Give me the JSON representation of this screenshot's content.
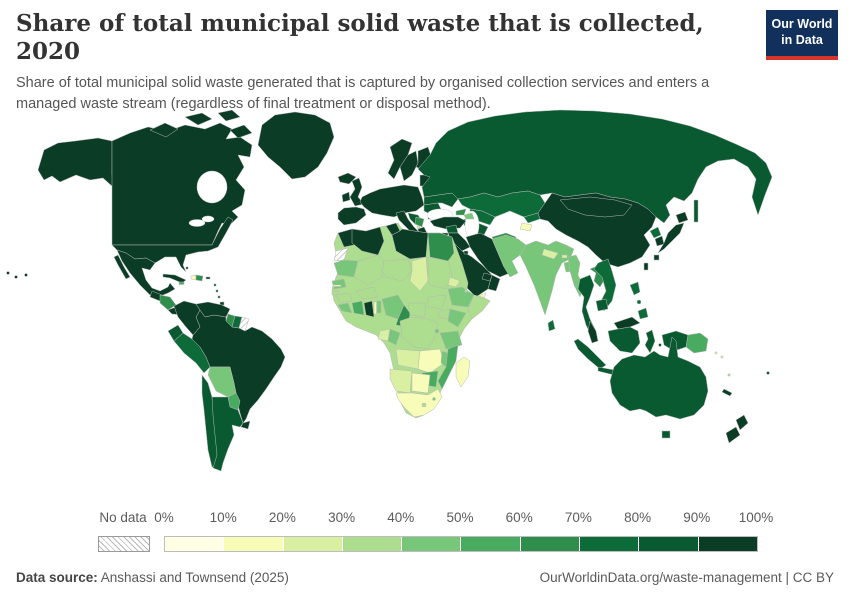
{
  "header": {
    "title": "Share of total municipal solid waste that is collected, 2020",
    "subtitle": "Share of total municipal solid waste generated that is captured by organised collection services and enters a managed waste stream (regardless of final treatment or disposal method).",
    "logo": {
      "line1": "Our World",
      "line2": "in Data",
      "bg": "#12305c",
      "accent": "#d7352a"
    }
  },
  "legend": {
    "no_data_label": "No data",
    "tick_labels": [
      "0%",
      "10%",
      "20%",
      "30%",
      "40%",
      "50%",
      "60%",
      "70%",
      "80%",
      "90%",
      "100%"
    ]
  },
  "footer": {
    "source_label": "Data source:",
    "source_value": " Anshassi and Townsend (2025)",
    "right_text": "OurWorldinData.org/waste-management | CC BY"
  },
  "chart_data": {
    "type": "choropleth",
    "title": "Share of total municipal solid waste that is collected, 2020",
    "unit": "%",
    "bin_edges": [
      0,
      10,
      20,
      30,
      40,
      50,
      60,
      70,
      80,
      90,
      100
    ],
    "colors": [
      "#ffffe5",
      "#f7fcb9",
      "#d9f0a3",
      "#addd8e",
      "#78c679",
      "#48ab5f",
      "#2f8e4c",
      "#0d6b39",
      "#0a5a31",
      "#0b3d26"
    ],
    "no_data_style": "white-with-gray-diagonal-hatch",
    "legend_position": "bottom",
    "countries": {
      "Canada": 99,
      "United States": 99,
      "Greenland": 99,
      "Mexico": 97,
      "Guatemala": 95,
      "Honduras": 60,
      "Nicaragua": 58,
      "Costa Rica": 95,
      "Panama": 95,
      "Cuba": 95,
      "Haiti": 15,
      "Dominican Republic": 65,
      "Jamaica": 55,
      "Puerto Rico": 95,
      "Bahamas": 95,
      "Barbados": 85,
      "Trinidad and Tobago": 95,
      "Colombia": 98,
      "Venezuela": 98,
      "Guyana": 62,
      "Suriname": 75,
      "French Guiana": null,
      "Ecuador": 88,
      "Peru": 75,
      "Brazil": 95,
      "Bolivia": 45,
      "Paraguay": 55,
      "Uruguay": 92,
      "Argentina": 85,
      "Chile": 88,
      "Iceland": 98,
      "Ireland": 97,
      "United Kingdom": 99,
      "Norway": 99,
      "Sweden": 99,
      "Finland": 99,
      "Denmark": 99,
      "Germany": 99,
      "Spain": 97,
      "Italy": 99,
      "Estonia": 95,
      "Belarus": 92,
      "Ukraine": 85,
      "Romania": 88,
      "Bulgaria": 90,
      "Croatia": 88,
      "Serbia": 65,
      "Montenegro": 25,
      "Greece": 95,
      "Turkey": 92,
      "Georgia": 60,
      "Azerbaijan": 45,
      "Russia": 85,
      "Kazakhstan": 70,
      "Uzbekistan": 72,
      "Turkmenistan": 82,
      "Kyrgyzstan": 72,
      "Tajikistan": 15,
      "Afghanistan": 62,
      "Pakistan": 45,
      "India": 45,
      "Nepal": 25,
      "Bhutan": 25,
      "Bangladesh": 45,
      "Sri Lanka": 75,
      "Myanmar": 45,
      "Thailand": 85,
      "Laos": 62,
      "Vietnam": 75,
      "Cambodia": 80,
      "Malaysia": 90,
      "Indonesia": 80,
      "Philippines": 75,
      "China": 97,
      "Mongolia": 97,
      "North Korea": 72,
      "South Korea": 95,
      "Japan": 99,
      "Taiwan": 90,
      "Papua New Guinea": 50,
      "Solomon Islands": 20,
      "Vanuatu": 30,
      "New Caledonia": 90,
      "Fiji": 85,
      "Syria": 88,
      "Iraq": 92,
      "Israel": 95,
      "Jordan": 95,
      "Saudi Arabia": 97,
      "Yemen": 12,
      "Oman": 95,
      "United Arab Emirates": 97,
      "Kuwait": 95,
      "Iran": 97,
      "Morocco": 97,
      "Western Sahara": null,
      "Algeria": 99,
      "Tunisia": 97,
      "Libya": 99,
      "Egypt": 68,
      "Mauritania": 48,
      "Mali": 32,
      "Niger": 30,
      "Chad": 28,
      "Sudan": 35,
      "Eritrea": 28,
      "Djibouti": 35,
      "Senegal": 48,
      "Gambia": 15,
      "Guinea-Bissau": 30,
      "Guinea": 35,
      "Sierra Leone": 48,
      "Cote d'Ivoire": 50,
      "Ghana": 92,
      "Togo": 18,
      "Benin": 45,
      "Burkina Faso": 35,
      "Nigeria": 42,
      "Cameroon": 68,
      "Central African Republic": 30,
      "South Sudan": 32,
      "Ethiopia": 45,
      "Somalia": 38,
      "Kenya": 40,
      "Uganda": 38,
      "Rwanda": 42,
      "DR Congo": 30,
      "Congo": 45,
      "Gabon": 22,
      "Angola": 25,
      "Zambia": 13,
      "Malawi": 42,
      "Tanzania": 45,
      "Mozambique": 58,
      "Zimbabwe": 55,
      "Namibia": 25,
      "Botswana": 18,
      "South Africa": 18,
      "Lesotho": 30,
      "Eswatini": 45,
      "Madagascar": 12,
      "Africa-interior": 33,
      "Australia": 88,
      "New Zealand": 92
    }
  }
}
